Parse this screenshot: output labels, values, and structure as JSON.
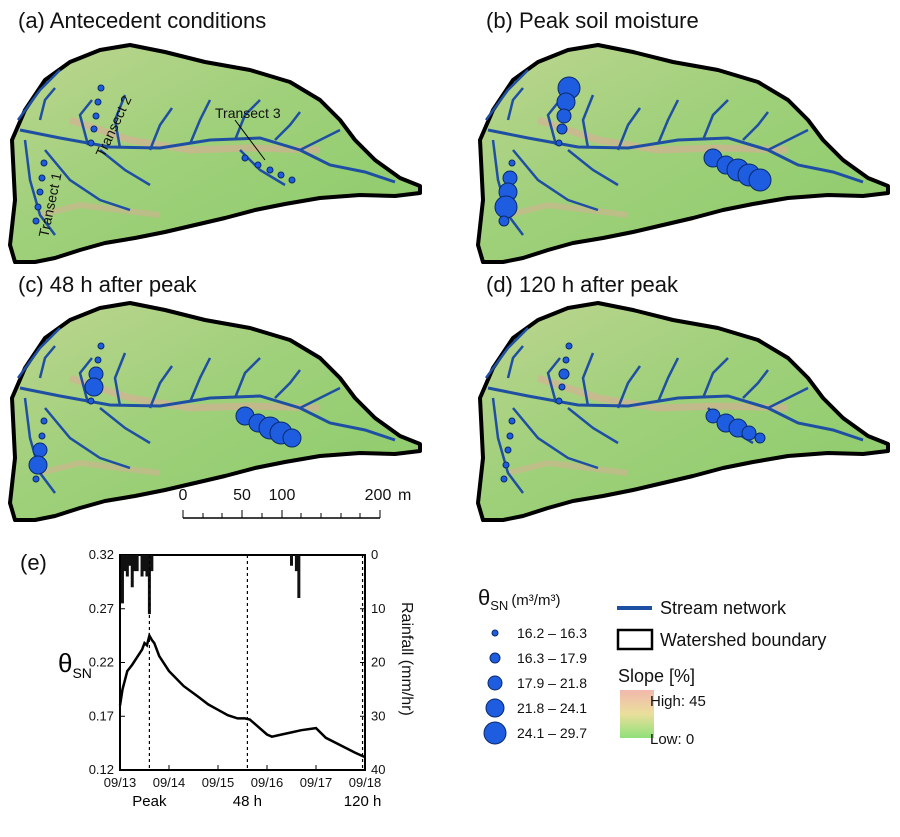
{
  "panels": [
    {
      "id": "a",
      "title": "(a) Antecedent conditions",
      "sizes": [
        [
          1,
          1,
          1,
          1,
          1
        ],
        [
          1,
          1,
          1,
          1,
          1
        ],
        [
          1,
          1,
          1,
          1,
          1
        ]
      ]
    },
    {
      "id": "b",
      "title": "(b) Peak soil moisture",
      "sizes": [
        [
          1,
          3,
          4,
          5,
          2
        ],
        [
          5,
          4,
          3,
          2,
          1
        ],
        [
          4,
          4,
          5,
          5,
          5
        ]
      ]
    },
    {
      "id": "c",
      "title": "(c) 48 h after peak",
      "sizes": [
        [
          1,
          1,
          3,
          4,
          1
        ],
        [
          1,
          1,
          3,
          4,
          1
        ],
        [
          4,
          4,
          5,
          5,
          4
        ]
      ]
    },
    {
      "id": "d",
      "title": "(d) 120 h after peak",
      "sizes": [
        [
          1,
          1,
          1,
          1,
          1
        ],
        [
          1,
          1,
          2,
          1,
          1
        ],
        [
          3,
          4,
          4,
          3,
          2
        ]
      ]
    }
  ],
  "transects": [
    "Transect 1",
    "Transect 2",
    "Transect 3"
  ],
  "scale_bar": {
    "ticks": [
      "0",
      "50",
      "100",
      "200"
    ],
    "unit": "m"
  },
  "legend": {
    "theta_label": "θ",
    "theta_sub": "SN",
    "theta_unit": "(m³/m³)",
    "classes": [
      "16.2 – 16.3",
      "16.3 – 17.9",
      "17.9 – 21.8",
      "21.8 – 24.1",
      "24.1 – 29.7"
    ],
    "stream": "Stream network",
    "boundary": "Watershed boundary",
    "slope_title": "Slope [%]",
    "slope_high": "High: 45",
    "slope_low": "Low: 0"
  },
  "colors": {
    "stream": "#1f4fa3",
    "point": "#1e5de0",
    "terrain_low": "#8fdc6a",
    "terrain_high": "#e8b0a6"
  },
  "chart_data": {
    "type": "line",
    "panel_label": "(e)",
    "ylabel": "θ",
    "ylabel_sub": "SN",
    "y2label": "Rainfall (mm/hr)",
    "ylim": [
      0.12,
      0.32
    ],
    "y2lim": [
      0,
      40
    ],
    "yticks": [
      "0.12",
      "0.17",
      "0.22",
      "0.27",
      "0.32"
    ],
    "y2ticks": [
      "0",
      "10",
      "20",
      "30",
      "40"
    ],
    "xticks": [
      "09/13",
      "09/14",
      "09/15",
      "09/16",
      "09/17",
      "09/18"
    ],
    "markers": [
      "Peak",
      "48 h",
      "120 h"
    ],
    "marker_days": [
      0.6,
      2.6,
      4.95
    ],
    "soil_moisture": {
      "x": [
        0.0,
        0.05,
        0.15,
        0.25,
        0.35,
        0.45,
        0.5,
        0.55,
        0.6,
        0.65,
        0.7,
        0.8,
        1.0,
        1.3,
        1.6,
        1.8,
        2.0,
        2.2,
        2.4,
        2.55,
        2.65,
        2.8,
        3.0,
        3.1,
        3.3,
        3.5,
        3.7,
        4.0,
        4.2,
        4.5,
        4.8,
        5.0
      ],
      "y": [
        0.18,
        0.195,
        0.212,
        0.218,
        0.225,
        0.232,
        0.238,
        0.236,
        0.245,
        0.241,
        0.238,
        0.226,
        0.212,
        0.198,
        0.188,
        0.181,
        0.176,
        0.171,
        0.168,
        0.168,
        0.167,
        0.161,
        0.153,
        0.151,
        0.153,
        0.155,
        0.157,
        0.159,
        0.15,
        0.143,
        0.136,
        0.132
      ]
    },
    "rainfall": {
      "x": [
        0.05,
        0.1,
        0.15,
        0.2,
        0.25,
        0.3,
        0.35,
        0.45,
        0.5,
        0.55,
        0.6,
        0.65,
        3.5,
        3.6,
        3.65
      ],
      "y": [
        9,
        3,
        4,
        2,
        6,
        3,
        3,
        4,
        3,
        4,
        11,
        3,
        2,
        3,
        8
      ]
    }
  }
}
